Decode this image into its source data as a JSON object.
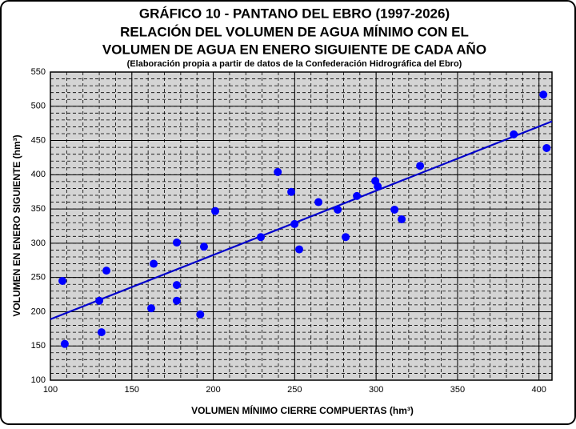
{
  "chart_data": {
    "type": "scatter",
    "title": [
      "GRÁFICO 10 - PANTANO DEL EBRO (1997-2026)",
      "RELACIÓN DEL VOLUMEN DE AGUA MÍNIMO CON EL",
      "VOLUMEN DE AGUA EN ENERO SIGUIENTE DE CADA AÑO"
    ],
    "subtitle": "(Elaboración propia a partir de datos de la Confederación Hidrográfica del Ebro)",
    "xlabel": "VOLUMEN MÍNIMO CIERRE COMPUERTAS (hm³)",
    "ylabel": "VOLUMEN EN ENERO SIGUIENTE (hm³)",
    "x": [
      107.4,
      108.8,
      130,
      131.4,
      134.4,
      161.9,
      163.4,
      177.6,
      177.6,
      177.6,
      192,
      194.3,
      201.2,
      229.2,
      239.6,
      247.9,
      249.9,
      252.8,
      264.6,
      276.4,
      281.3,
      288.2,
      299.5,
      301,
      311.3,
      315.7,
      327,
      384.5,
      402.7,
      404.7
    ],
    "values": [
      245,
      153,
      216,
      170,
      260,
      205,
      270,
      301,
      239,
      216,
      196,
      295,
      347,
      309,
      404,
      375,
      328,
      291,
      360,
      349,
      309,
      369,
      391,
      383,
      349,
      335,
      413,
      459,
      517,
      439
    ],
    "color": "#0000ff",
    "trendline": {
      "x": [
        100,
        408
      ],
      "y": [
        189,
        478
      ],
      "color": "#0000cc"
    },
    "xlim": [
      100,
      408
    ],
    "ylim": [
      100,
      550
    ],
    "xticks": [
      100,
      150,
      200,
      250,
      300,
      350,
      400
    ],
    "yticks": [
      100,
      150,
      200,
      250,
      300,
      350,
      400,
      450,
      500,
      550
    ],
    "grid": true,
    "minor_grid": 10
  }
}
